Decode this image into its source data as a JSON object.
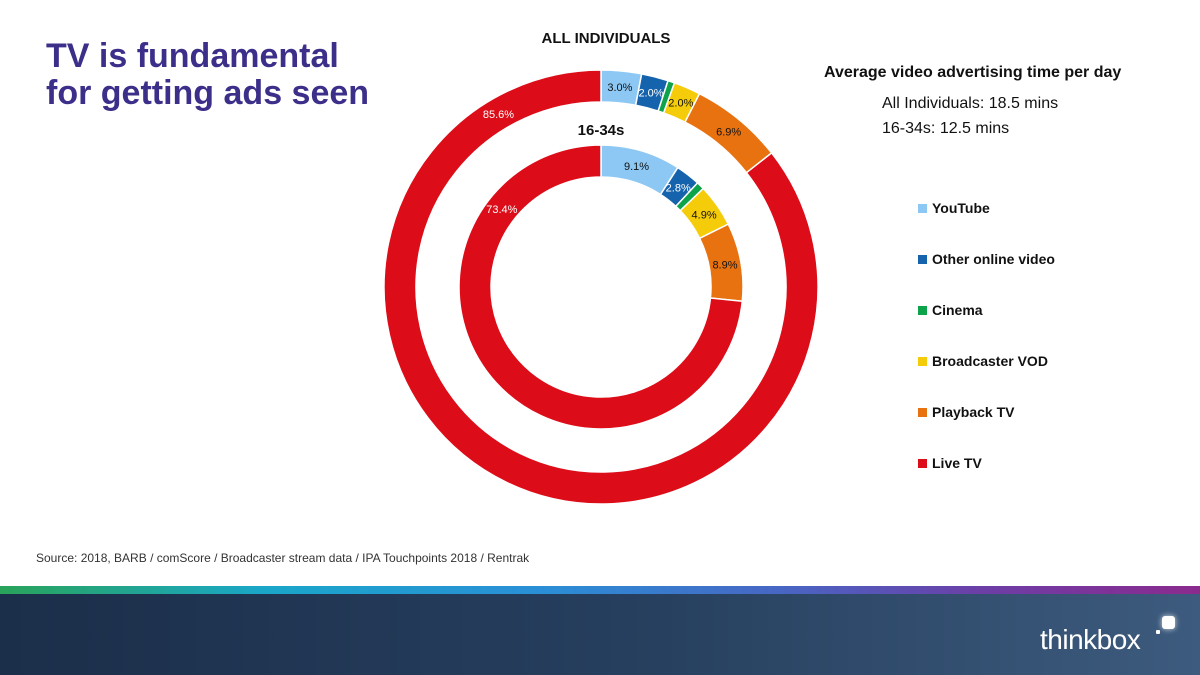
{
  "title": "TV is fundamental for getting ads seen",
  "info": {
    "heading": "Average video advertising time per day",
    "lines": [
      "All Individuals: 18.5 mins",
      "16-34s: 12.5 mins"
    ]
  },
  "source": "Source: 2018, BARB / comScore / Broadcaster stream data  / IPA Touchpoints 2018 / Rentrak",
  "brand": "thinkbox",
  "chart_data": {
    "type": "pie",
    "subtype": "nested-donut",
    "title": "ALL INDIVIDUALS",
    "legend_position": "right",
    "categories": [
      "YouTube",
      "Other online video",
      "Cinema",
      "Broadcaster VOD",
      "Playback TV",
      "Live TV"
    ],
    "colors": [
      "#8dc8f4",
      "#1563ad",
      "#0da34a",
      "#f5cc0a",
      "#e8720f",
      "#dc0d18"
    ],
    "series": [
      {
        "name": "ALL INDIVIDUALS",
        "ring": "outer",
        "values": [
          3.0,
          2.0,
          0.5,
          2.0,
          6.9,
          85.6
        ],
        "labels": [
          "3.0%",
          "2.0%",
          "",
          "2.0%",
          "6.9%",
          "85.6%"
        ]
      },
      {
        "name": "16-34s",
        "ring": "inner",
        "values": [
          9.1,
          2.8,
          0.9,
          4.9,
          8.9,
          73.4
        ],
        "labels": [
          "9.1%",
          "2.8%",
          "",
          "4.9%",
          "8.9%",
          "73.4%"
        ]
      }
    ]
  }
}
